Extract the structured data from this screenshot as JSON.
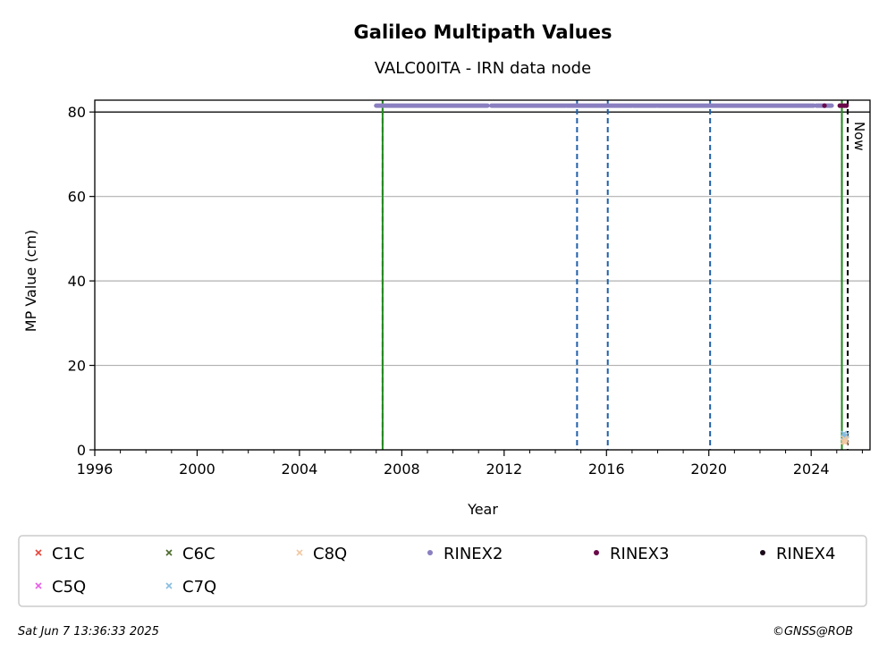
{
  "chart_data": {
    "type": "scatter",
    "title": "Galileo Multipath Values",
    "subtitle": "VALC00ITA - IRN data node",
    "xlabel": "Year",
    "ylabel": "MP Value (cm)",
    "xlim": [
      1996,
      2026.3
    ],
    "ylim": [
      0,
      82.8
    ],
    "x_ticks": [
      1996,
      2000,
      2004,
      2008,
      2012,
      2016,
      2020,
      2024
    ],
    "y_ticks": [
      0,
      20,
      40,
      60,
      80
    ],
    "grid": "horizontal",
    "reference_line_y": 80,
    "vlines": [
      {
        "x": 2007.25,
        "color": "#cc0000",
        "style": "dashed"
      },
      {
        "x": 2007.25,
        "color": "#228b22",
        "style": "solid"
      },
      {
        "x": 2014.85,
        "color": "#1f5fa8",
        "style": "dashed"
      },
      {
        "x": 2016.05,
        "color": "#1f5fa8",
        "style": "dashed"
      },
      {
        "x": 2020.05,
        "color": "#1f5fa8",
        "style": "dashed"
      },
      {
        "x": 2025.2,
        "color": "#cc0000",
        "style": "dashed"
      },
      {
        "x": 2025.2,
        "color": "#228b22",
        "style": "solid"
      },
      {
        "x": 2025.43,
        "color": "#000000",
        "style": "dashed"
      }
    ],
    "now_label": "Now",
    "segments": [
      {
        "series": "RINEX2",
        "y": 81.5,
        "x_ranges": [
          [
            2007.0,
            2011.35
          ],
          [
            2011.5,
            2014.4
          ],
          [
            2014.45,
            2017.0
          ],
          [
            2017.05,
            2017.95
          ],
          [
            2018.0,
            2024.1
          ],
          [
            2024.2,
            2024.8
          ]
        ]
      }
    ],
    "series": [
      {
        "name": "C1C",
        "marker": "x",
        "color": "#e8453c",
        "points": []
      },
      {
        "name": "C5Q",
        "marker": "x",
        "color": "#e85de8",
        "points": []
      },
      {
        "name": "C6C",
        "marker": "x",
        "color": "#4a6a2a",
        "points": []
      },
      {
        "name": "C7Q",
        "marker": "x",
        "color": "#88bde0",
        "points": [
          [
            2025.28,
            3.8
          ],
          [
            2025.31,
            3.2
          ],
          [
            2025.34,
            2.8
          ],
          [
            2025.37,
            3.5
          ]
        ]
      },
      {
        "name": "C8Q",
        "marker": "x",
        "color": "#f2c8a0",
        "points": [
          [
            2025.27,
            2.0
          ],
          [
            2025.3,
            2.6
          ],
          [
            2025.33,
            1.8
          ],
          [
            2025.36,
            2.3
          ]
        ]
      },
      {
        "name": "RINEX2",
        "marker": "o",
        "color": "#8a7fc0",
        "points": []
      },
      {
        "name": "RINEX3",
        "marker": "o",
        "color": "#6a0a4a",
        "points": [
          [
            2024.52,
            81.5
          ],
          [
            2025.12,
            81.5
          ],
          [
            2025.22,
            81.5
          ],
          [
            2025.3,
            81.5
          ],
          [
            2025.38,
            81.5
          ]
        ]
      },
      {
        "name": "RINEX4",
        "marker": "o",
        "color": "#1a0a1a",
        "points": []
      }
    ],
    "legend": {
      "placement": "below",
      "entries": [
        {
          "name": "C1C",
          "marker": "x",
          "color": "#e8453c"
        },
        {
          "name": "C6C",
          "marker": "x",
          "color": "#4a6a2a"
        },
        {
          "name": "C8Q",
          "marker": "x",
          "color": "#f2c8a0"
        },
        {
          "name": "RINEX2",
          "marker": "o",
          "color": "#8a7fc0"
        },
        {
          "name": "RINEX3",
          "marker": "o",
          "color": "#6a0a4a"
        },
        {
          "name": "RINEX4",
          "marker": "o",
          "color": "#1a0a1a"
        },
        {
          "name": "C5Q",
          "marker": "x",
          "color": "#e85de8"
        },
        {
          "name": "C7Q",
          "marker": "x",
          "color": "#88bde0"
        }
      ]
    }
  },
  "footer": {
    "timestamp": "Sat Jun  7 13:36:33 2025",
    "credit": "©GNSS@ROB"
  }
}
